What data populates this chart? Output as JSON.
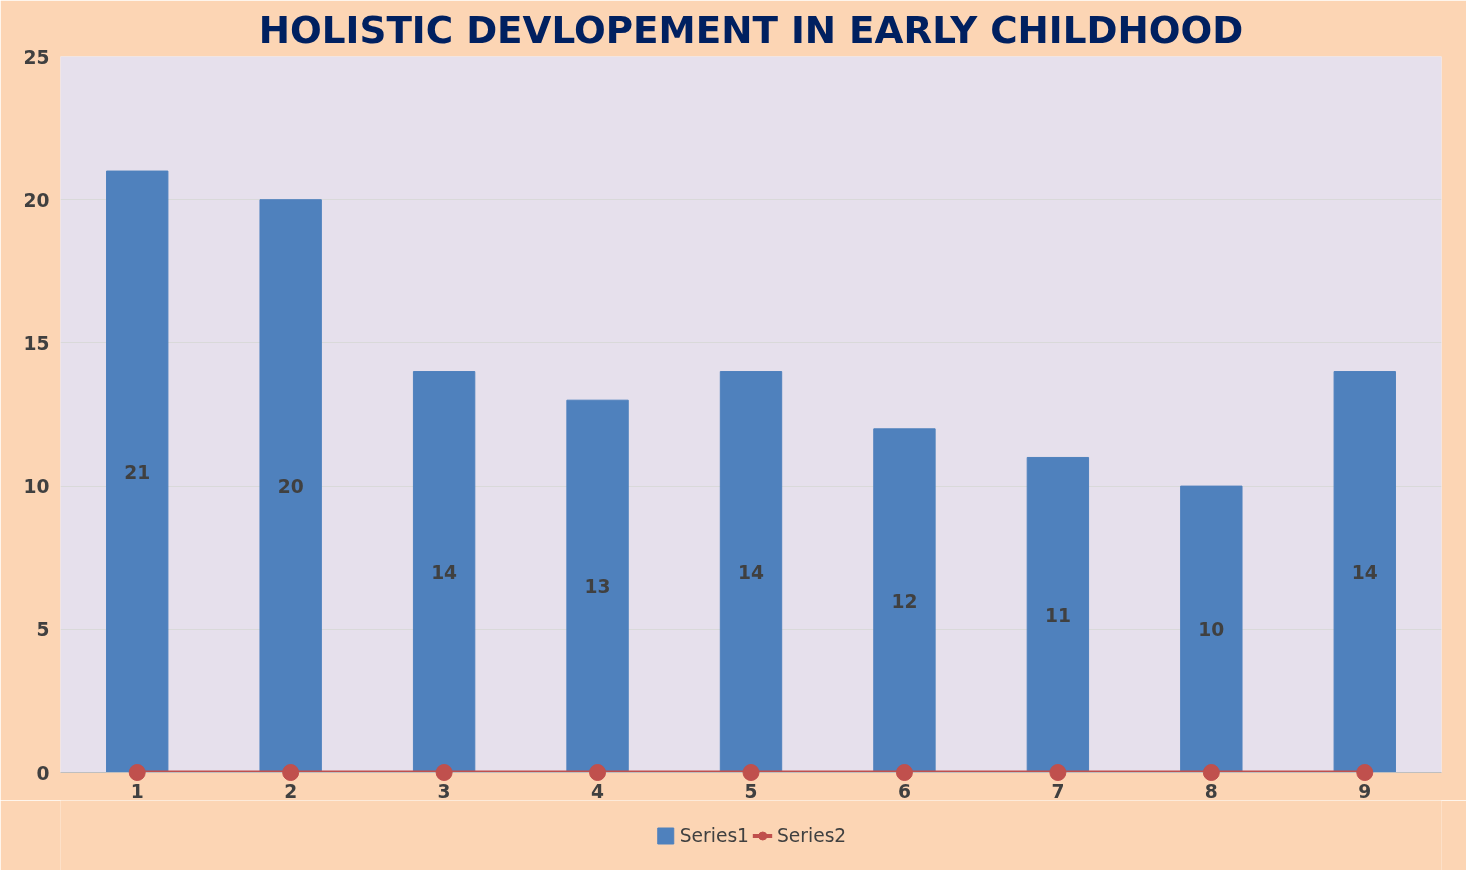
{
  "chart_data": {
    "type": "bar",
    "title": "HOLISTIC DEVLOPEMENT IN EARLY CHILDHOOD",
    "categories": [
      "1",
      "2",
      "3",
      "4",
      "5",
      "6",
      "7",
      "8",
      "9"
    ],
    "series": [
      {
        "name": "Series1",
        "color": "#4f81bd",
        "values": [
          21,
          20,
          14,
          13,
          14,
          12,
          11,
          10,
          14
        ],
        "data_labels": true
      },
      {
        "name": "Series2",
        "type": "line",
        "color": "#c0504d",
        "values": [
          0,
          0,
          0,
          0,
          0,
          0,
          0,
          0,
          0
        ],
        "marker": "circle",
        "line_style": "solid"
      }
    ],
    "ylim": [
      0,
      25
    ],
    "yticks": [
      0,
      5,
      10,
      15,
      20,
      25
    ],
    "grid": "y",
    "legend": "bottom"
  }
}
